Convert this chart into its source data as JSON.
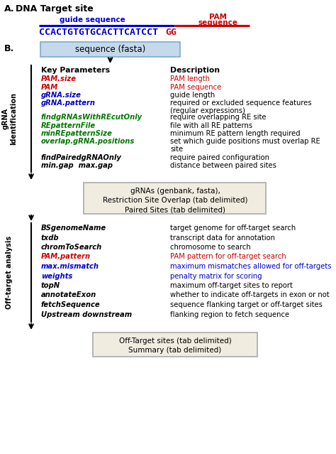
{
  "fig_width": 4.74,
  "fig_height": 6.39,
  "dpi": 100,
  "bg_color": "#ffffff",
  "guide_label": "guide sequence",
  "pam_label_line1": "PAM",
  "pam_label_line2": "sequence",
  "dna_blue": "CCACTGTGTGCACTTCATCCT",
  "dna_red": "GG",
  "input_box1_text": "sequence (fasta)",
  "input_box1_color": "#c5d9ea",
  "input_box1_border": "#7aabcc",
  "col_key": "Key Parameters",
  "col_desc": "Description",
  "grna_params": [
    {
      "text": "PAM.size",
      "color": "#cc0000",
      "style": "italic",
      "weight": "bold"
    },
    {
      "text": "PAM",
      "color": "#cc0000",
      "style": "italic",
      "weight": "bold"
    },
    {
      "text": "gRNA.size",
      "color": "#0000cc",
      "style": "italic",
      "weight": "bold"
    },
    {
      "text": "gRNA.pattern",
      "color": "#0000cc",
      "style": "italic",
      "weight": "bold"
    },
    {
      "text": "findgRNAsWithREcutOnly",
      "color": "#007700",
      "style": "italic",
      "weight": "bold"
    },
    {
      "text": "REpatternFile",
      "color": "#007700",
      "style": "italic",
      "weight": "bold"
    },
    {
      "text": "minREpatternSize",
      "color": "#007700",
      "style": "italic",
      "weight": "bold"
    },
    {
      "text": "overlap.gRNA.positions",
      "color": "#007700",
      "style": "italic",
      "weight": "bold"
    },
    {
      "text": "findPairedgRNAOnly",
      "color": "#000000",
      "style": "italic",
      "weight": "bold"
    },
    {
      "text": "min.gap  max.gap",
      "color": "#000000",
      "style": "italic",
      "weight": "bold"
    }
  ],
  "grna_descs": [
    {
      "text": "PAM length",
      "color": "#cc0000",
      "extra": ""
    },
    {
      "text": "PAM sequence",
      "color": "#cc0000",
      "extra": ""
    },
    {
      "text": "guide length",
      "color": "#000000",
      "extra": ""
    },
    {
      "text": "required or excluded sequence features",
      "color": "#000000",
      "extra": "(regular expressions)"
    },
    {
      "text": "require overlapping RE site",
      "color": "#000000",
      "extra": ""
    },
    {
      "text": "file with all RE patterns",
      "color": "#000000",
      "extra": ""
    },
    {
      "text": "minimum RE pattern length required",
      "color": "#000000",
      "extra": ""
    },
    {
      "text": "set which guide positions must overlap RE",
      "color": "#000000",
      "extra": "site"
    },
    {
      "text": "require paired configuration",
      "color": "#000000",
      "extra": ""
    },
    {
      "text": "distance between paired sites",
      "color": "#000000",
      "extra": ""
    }
  ],
  "mid_box_text_lines": [
    "gRNAs (genbank, fasta),",
    "Restriction Site Overlap (tab delimited)",
    "Paired Sites (tab delimited)"
  ],
  "mid_box_color": "#f0ece0",
  "mid_box_border": "#aaaaaa",
  "offtarget_params": [
    {
      "text": "BSgenomeName",
      "color": "#000000",
      "style": "italic",
      "weight": "bold"
    },
    {
      "text": "txdb",
      "color": "#000000",
      "style": "italic",
      "weight": "bold"
    },
    {
      "text": "chromToSearch",
      "color": "#000000",
      "style": "italic",
      "weight": "bold"
    },
    {
      "text": "PAM.pattern",
      "color": "#cc0000",
      "style": "italic",
      "weight": "bold"
    },
    {
      "text": "max.mismatch",
      "color": "#0000cc",
      "style": "italic",
      "weight": "bold"
    },
    {
      "text": "weights",
      "color": "#0000cc",
      "style": "italic",
      "weight": "bold"
    },
    {
      "text": "topN",
      "color": "#000000",
      "style": "italic",
      "weight": "bold"
    },
    {
      "text": "annotateExon",
      "color": "#000000",
      "style": "italic",
      "weight": "bold"
    },
    {
      "text": "fetchSequence",
      "color": "#000000",
      "style": "italic",
      "weight": "bold"
    },
    {
      "text": "Upstream downstream",
      "color": "#000000",
      "style": "italic",
      "weight": "bold"
    }
  ],
  "offtarget_descs": [
    {
      "text": "target genome for off-target search",
      "color": "#000000"
    },
    {
      "text": "transcript data for annotation",
      "color": "#000000"
    },
    {
      "text": "chromosome to search",
      "color": "#000000"
    },
    {
      "text": "PAM pattern for off-target search",
      "color": "#cc0000"
    },
    {
      "text": "maximum mismatches allowed for off-targets",
      "color": "#0000cc"
    },
    {
      "text": "penalty matrix for scoring",
      "color": "#0000cc"
    },
    {
      "text": "maximum off-target sites to report",
      "color": "#000000"
    },
    {
      "text": "whether to indicate off-targets in exon or not",
      "color": "#000000"
    },
    {
      "text": "sequence flanking target or off-target sites",
      "color": "#000000"
    },
    {
      "text": "flanking region to fetch sequence",
      "color": "#000000"
    }
  ],
  "out_box_text_lines": [
    "Off-Target sites (tab delimited)",
    "Summary (tab delimited)"
  ],
  "out_box_color": "#f0ece0",
  "out_box_border": "#aaaaaa",
  "grna_side_label": "gRNA\nIdentification",
  "offtarget_side_label": "Off-target analysis"
}
